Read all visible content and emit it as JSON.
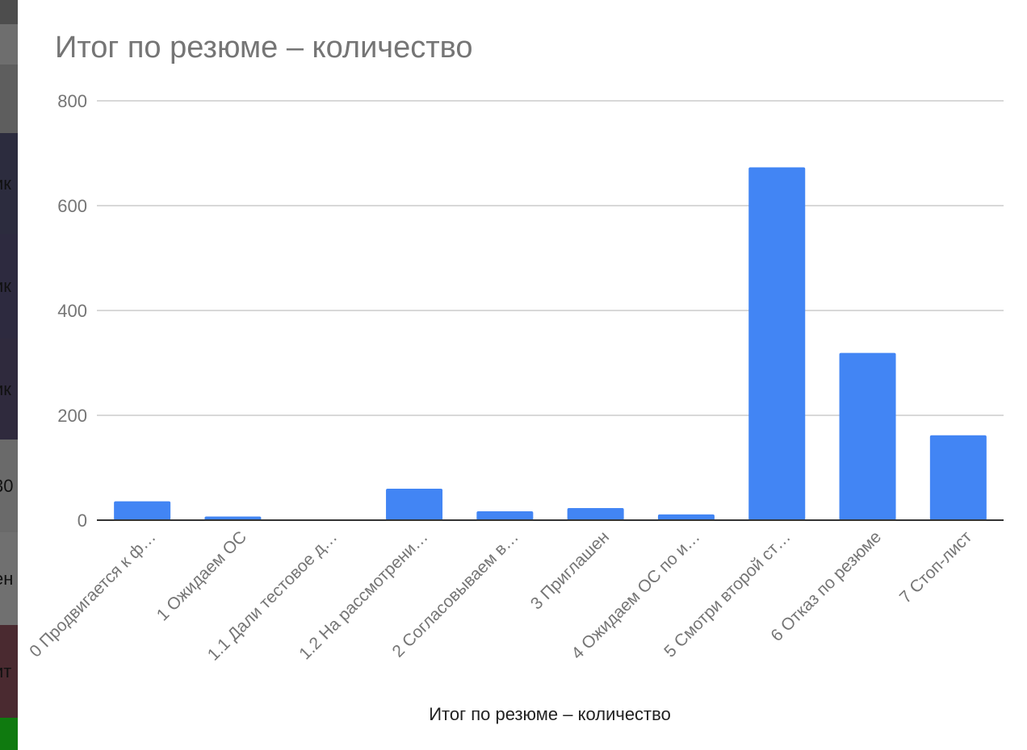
{
  "background": {
    "segments": [
      {
        "color": "#4d4d4d",
        "text": ""
      },
      {
        "color": "#6e6e6e",
        "text": ""
      },
      {
        "color": "#5e5e5e",
        "text": ""
      },
      {
        "color": "#2c2c3e",
        "text": "ик"
      },
      {
        "color": "#2d2a3f",
        "text": "ик"
      },
      {
        "color": "#2f2a3d",
        "text": "ик"
      },
      {
        "color": "#6a6a6a",
        "text": "30"
      },
      {
        "color": "#707070",
        "text": "ен"
      },
      {
        "color": "#4a2a30",
        "text": "ит"
      },
      {
        "color": "#0f7a0f",
        "text": ""
      }
    ]
  },
  "chart": {
    "title": "Итог по резюме – количество"
  },
  "chart_data": {
    "type": "bar",
    "title": "Итог по резюме – количество",
    "xlabel": "Итог по резюме – количество",
    "ylabel": "",
    "ylim": [
      0,
      800
    ],
    "yticks": [
      0,
      200,
      400,
      600,
      800
    ],
    "grid": true,
    "legend": "none",
    "bar_color": "#4285f4",
    "categories": [
      "0 Продвигается к ф…",
      "1 Ожидаем ОС",
      "1.1 Дали тестовое д…",
      "1.2 На рассмотрени…",
      "2 Согласовываем в…",
      "3 Приглашен",
      "4 Ожидаем ОС по и…",
      "5 Смотри второй ст…",
      "6 Отказ по резюме",
      "7 Стоп-лист"
    ],
    "values": [
      36,
      7,
      1,
      60,
      17,
      23,
      11,
      673,
      319,
      162
    ]
  }
}
